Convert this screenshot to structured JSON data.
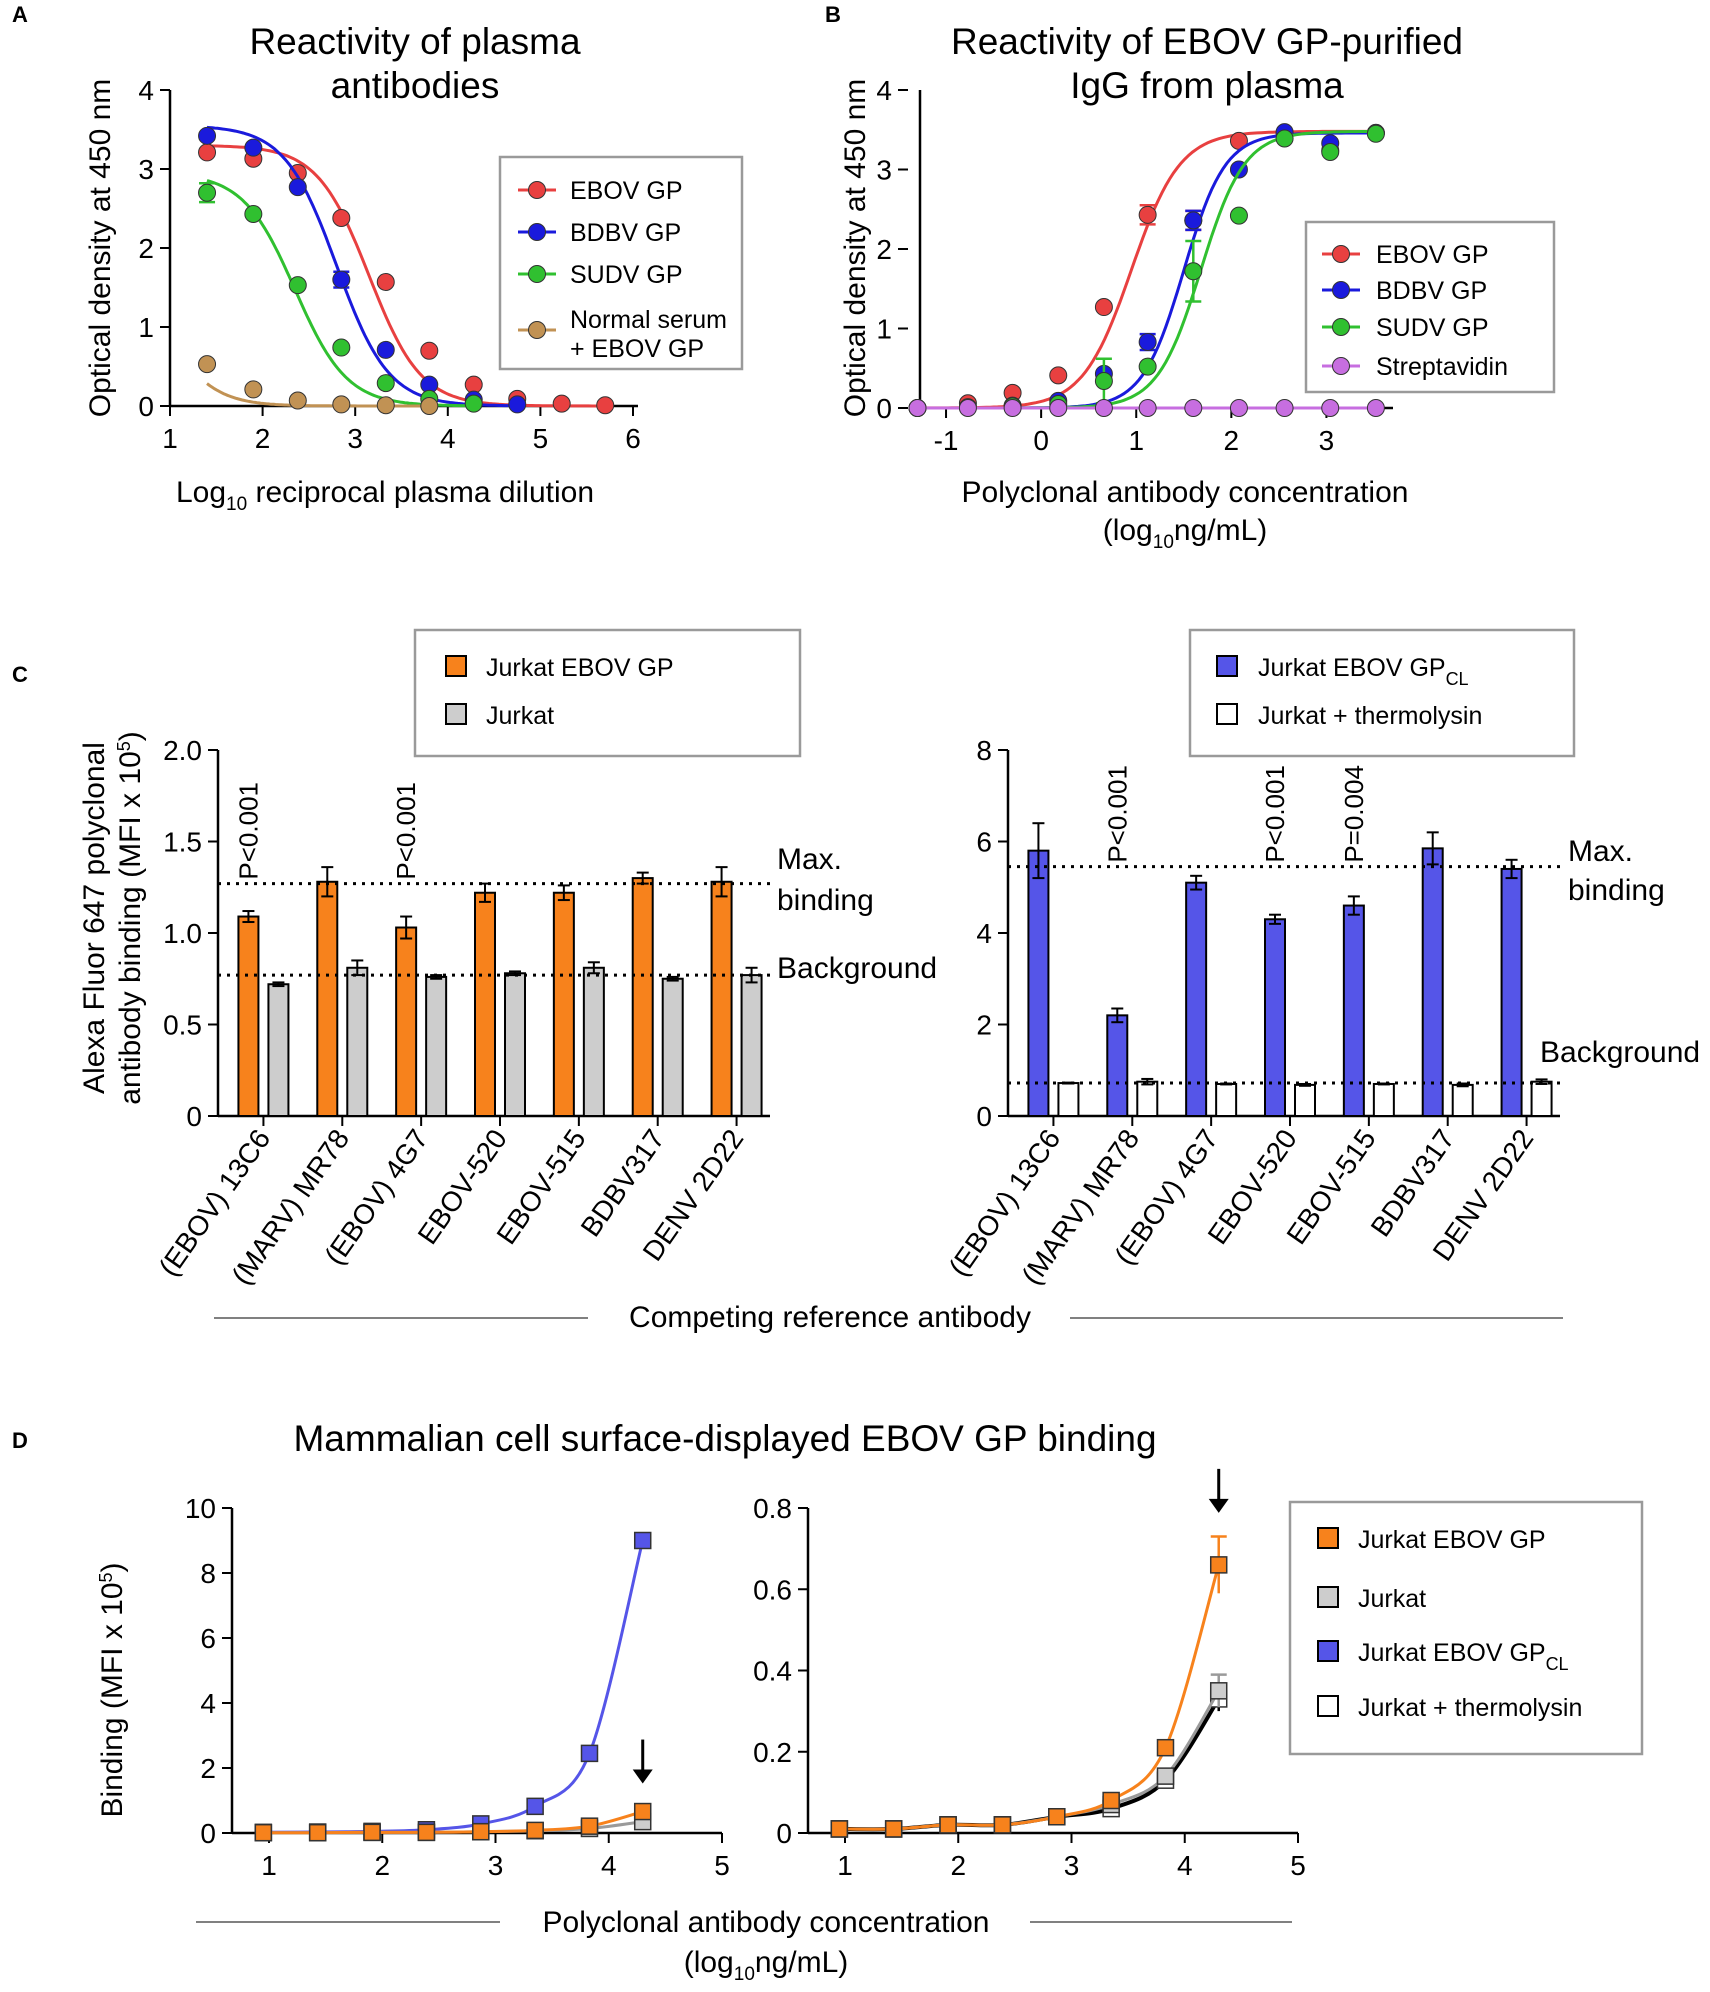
{
  "panel_labels": [
    "A",
    "B",
    "C",
    "D"
  ],
  "section_titles": {
    "competing": "Competing reference antibody",
    "panel_d_title": "Mammalian cell surface-displayed EBOV GP binding",
    "panel_d_xlabel": "Polyclonal antibody concentration",
    "panel_d_xunit": "(log10ng/mL)"
  },
  "colors": {
    "ebov": "#e84040",
    "bdbv": "#1a1adc",
    "sudv": "#30c030",
    "normal": "#c19254",
    "strep": "#c76ee0",
    "orange": "#f7821c",
    "gray": "#cdcdcd",
    "purple": "#5555e8",
    "white": "#ffffff"
  },
  "chart_data": [
    {
      "id": "A",
      "type": "line",
      "title": "Reactivity of plasma antibodies",
      "title_lines": [
        "Reactivity of plasma",
        "antibodies"
      ],
      "xlabel": "Log10 reciprocal plasma dilution",
      "ylabel": "Optical density at 450 nm",
      "xlim": [
        1,
        6
      ],
      "ylim": [
        0,
        4
      ],
      "xticks": [
        1,
        2,
        3,
        4,
        5,
        6
      ],
      "yticks": [
        0,
        1,
        2,
        3,
        4
      ],
      "legend_position": "top-right",
      "series": [
        {
          "name": "EBOV GP",
          "color": "#e84040",
          "x": [
            1.4,
            1.9,
            2.38,
            2.85,
            3.33,
            3.8,
            4.28,
            4.75,
            5.23,
            5.7
          ],
          "y": [
            3.21,
            3.13,
            2.95,
            2.38,
            1.57,
            0.7,
            0.27,
            0.09,
            0.03,
            0.01
          ],
          "err": [
            0,
            0,
            0,
            0,
            0,
            0,
            0,
            0,
            0,
            0
          ],
          "fit": {
            "bottom": 0,
            "top": 3.3,
            "ec50": 3.15,
            "hill": -1.55
          }
        },
        {
          "name": "BDBV GP",
          "color": "#1a1adc",
          "x": [
            1.4,
            1.9,
            2.38,
            2.85,
            3.33,
            3.8,
            4.28,
            4.75
          ],
          "y": [
            3.42,
            3.27,
            2.77,
            1.6,
            0.71,
            0.27,
            0.08,
            0.02
          ],
          "err": [
            0,
            0,
            0,
            0.1,
            0,
            0,
            0,
            0
          ],
          "fit": {
            "bottom": 0,
            "top": 3.55,
            "ec50": 2.8,
            "hill": -1.55
          }
        },
        {
          "name": "SUDV GP",
          "color": "#30c030",
          "x": [
            1.4,
            1.9,
            2.38,
            2.85,
            3.33,
            3.8,
            4.28
          ],
          "y": [
            2.7,
            2.43,
            1.53,
            0.74,
            0.29,
            0.09,
            0.03
          ],
          "err": [
            0.12,
            0,
            0,
            0,
            0,
            0,
            0
          ],
          "fit": {
            "bottom": 0,
            "top": 2.95,
            "ec50": 2.35,
            "hill": -1.55
          }
        },
        {
          "name": "Normal serum + EBOV GP",
          "legend_lines": [
            "Normal serum",
            "+ EBOV GP"
          ],
          "color": "#c19254",
          "x": [
            1.4,
            1.9,
            2.38,
            2.85,
            3.33,
            3.8
          ],
          "y": [
            0.53,
            0.21,
            0.07,
            0.02,
            0.01,
            0.0
          ],
          "err": [
            0,
            0,
            0,
            0,
            0,
            0
          ],
          "fit": {
            "bottom": 0,
            "top": 1.4,
            "ec50": 1.05,
            "hill": -1.7
          }
        }
      ]
    },
    {
      "id": "B",
      "type": "line",
      "title": "Reactivity of EBOV GP-purified IgG from plasma",
      "title_lines": [
        "Reactivity of EBOV GP-purified",
        "IgG from plasma"
      ],
      "xlabel": "Polyclonal antibody concentration",
      "xlabel_unit": "(log10ng/mL)",
      "ylabel": "Optical density at 450 nm",
      "xlim": [
        -1.4,
        3.7
      ],
      "ylim": [
        0,
        4
      ],
      "xticks": [
        -1,
        0,
        1,
        2,
        3
      ],
      "yticks": [
        0,
        1,
        2,
        3,
        4
      ],
      "legend_position": "middle-right",
      "series": [
        {
          "name": "EBOV GP",
          "color": "#e84040",
          "x": [
            -1.3,
            -0.77,
            -0.3,
            0.18,
            0.66,
            1.12,
            1.6,
            2.08,
            2.56,
            3.04,
            3.52
          ],
          "y": [
            0.0,
            0.06,
            0.19,
            0.41,
            1.27,
            2.43,
            2.36,
            3.36,
            3.45,
            3.24,
            3.46
          ],
          "err": [
            0,
            0,
            0,
            0,
            0,
            0.12,
            0.12,
            0,
            0,
            0,
            0
          ],
          "fit": {
            "bottom": 0,
            "top": 3.48,
            "ec50": 0.95,
            "hill": 1.7
          }
        },
        {
          "name": "BDBV GP",
          "color": "#1a1adc",
          "x": [
            -1.3,
            -0.77,
            -0.3,
            0.18,
            0.66,
            1.12,
            1.6,
            2.08,
            2.56,
            3.04,
            3.52
          ],
          "y": [
            0.0,
            0.01,
            0.03,
            0.09,
            0.43,
            0.83,
            2.36,
            3.0,
            3.47,
            3.33,
            3.46
          ],
          "err": [
            0,
            0,
            0,
            0,
            0,
            0.1,
            0.12,
            0,
            0,
            0,
            0
          ],
          "fit": {
            "bottom": 0,
            "top": 3.46,
            "ec50": 1.5,
            "hill": 2.0
          }
        },
        {
          "name": "SUDV GP",
          "color": "#30c030",
          "x": [
            -1.3,
            -0.77,
            -0.3,
            0.18,
            0.66,
            1.12,
            1.6,
            2.08,
            2.56,
            3.04,
            3.52
          ],
          "y": [
            0.0,
            0.01,
            0.02,
            0.05,
            0.34,
            0.52,
            1.72,
            2.42,
            3.39,
            3.22,
            3.45
          ],
          "err": [
            0,
            0,
            0,
            0,
            0.28,
            0,
            0.38,
            0,
            0,
            0,
            0
          ],
          "fit": {
            "bottom": 0,
            "top": 3.48,
            "ec50": 1.68,
            "hill": 1.9
          }
        },
        {
          "name": "Streptavidin",
          "color": "#c76ee0",
          "x": [
            -1.3,
            -0.77,
            -0.3,
            0.18,
            0.66,
            1.12,
            1.6,
            2.08,
            2.56,
            3.04,
            3.52
          ],
          "y": [
            0.0,
            0.0,
            0.0,
            0.0,
            0.0,
            0.0,
            0.0,
            0.0,
            0.0,
            0.0,
            0.0
          ],
          "err": [
            0,
            0,
            0,
            0,
            0,
            0,
            0,
            0,
            0,
            0,
            0
          ],
          "fit": {
            "bottom": 0,
            "top": 0,
            "ec50": 1,
            "hill": 1
          }
        }
      ]
    },
    {
      "id": "C-left",
      "type": "bar",
      "ylabel": "Alexa Fluor 647 polyclonal antibody binding (MFI x 10^5)",
      "ylabel_lines": [
        "Alexa Fluor 647 polyclonal",
        "antibody binding (MFI x 10"
      ],
      "ylabel_sup": "5",
      "ylim": [
        0,
        2.0
      ],
      "yticks": [
        0,
        0.5,
        1.0,
        1.5,
        2.0
      ],
      "ytick_labels": [
        "0",
        "0.5",
        "1.0",
        "1.5",
        "2.0"
      ],
      "categories": [
        "(EBOV) 13C6",
        "(MARV) MR78",
        "(EBOV) 4G7",
        "EBOV-520",
        "EBOV-515",
        "BDBV317",
        "DENV 2D22"
      ],
      "series": [
        {
          "name": "Jurkat EBOV GP",
          "color": "#f7821c",
          "values": [
            1.09,
            1.28,
            1.03,
            1.22,
            1.22,
            1.3,
            1.28
          ],
          "err": [
            0.03,
            0.08,
            0.06,
            0.05,
            0.04,
            0.03,
            0.08
          ]
        },
        {
          "name": "Jurkat",
          "color": "#cdcdcd",
          "values": [
            0.72,
            0.81,
            0.76,
            0.78,
            0.81,
            0.75,
            0.77
          ],
          "err": [
            0.01,
            0.04,
            0.01,
            0.01,
            0.03,
            0.01,
            0.04
          ]
        }
      ],
      "reference_lines": [
        {
          "label": "Max. binding",
          "label_lines": [
            "Max.",
            "binding"
          ],
          "value": 1.27
        },
        {
          "label": "Background",
          "label_lines": [
            "Background"
          ],
          "value": 0.77
        }
      ],
      "annotations": [
        {
          "text": "P<0.001",
          "category": "(EBOV) 13C6"
        },
        {
          "text": "P<0.001",
          "category": "(EBOV) 4G7"
        }
      ],
      "legend_position": "top"
    },
    {
      "id": "C-right",
      "type": "bar",
      "ylim": [
        0,
        8
      ],
      "yticks": [
        0,
        2,
        4,
        6,
        8
      ],
      "ytick_labels": [
        "0",
        "2",
        "4",
        "6",
        "8"
      ],
      "categories": [
        "(EBOV) 13C6",
        "(MARV) MR78",
        "(EBOV) 4G7",
        "EBOV-520",
        "EBOV-515",
        "BDBV317",
        "DENV 2D22"
      ],
      "series": [
        {
          "name": "Jurkat EBOV GP",
          "name_sub": "CL",
          "color": "#5555e8",
          "values": [
            5.8,
            2.2,
            5.1,
            4.3,
            4.6,
            5.85,
            5.4
          ],
          "err": [
            0.6,
            0.15,
            0.15,
            0.1,
            0.2,
            0.35,
            0.2
          ]
        },
        {
          "name": "Jurkat + thermolysin",
          "color": "#ffffff",
          "values": [
            0.72,
            0.75,
            0.7,
            0.68,
            0.7,
            0.68,
            0.75
          ],
          "err": [
            0.01,
            0.06,
            0.01,
            0.02,
            0.01,
            0.03,
            0.05
          ]
        }
      ],
      "reference_lines": [
        {
          "label": "Max. binding",
          "label_lines": [
            "Max.",
            "binding"
          ],
          "value": 5.45
        },
        {
          "label": "Background",
          "label_lines": [
            "Background"
          ],
          "value": 0.72
        }
      ],
      "annotations": [
        {
          "text": "P<0.001",
          "category": "(MARV) MR78"
        },
        {
          "text": "P<0.001",
          "category": "EBOV-520"
        },
        {
          "text": "P=0.004",
          "category": "EBOV-515"
        }
      ],
      "legend_position": "top"
    },
    {
      "id": "D-left",
      "type": "line",
      "ylabel": "Binding (MFI x 10^5)",
      "ylabel_text": "Binding (MFI x 10",
      "ylabel_sup": "5",
      "xlim": [
        0.75,
        5
      ],
      "ylim": [
        0,
        10
      ],
      "xticks": [
        1,
        2,
        3,
        4,
        5
      ],
      "yticks": [
        0,
        2,
        4,
        6,
        8,
        10
      ],
      "arrow_at_x": 4.3,
      "series": [
        {
          "name": "Jurkat EBOV GP CL",
          "color": "#5555e8",
          "x": [
            0.95,
            1.43,
            1.91,
            2.39,
            2.87,
            3.35,
            3.83,
            4.3
          ],
          "y": [
            0.02,
            0.03,
            0.05,
            0.1,
            0.28,
            0.82,
            2.45,
            9.0
          ]
        },
        {
          "name": "Jurkat",
          "color": "#cdcdcd",
          "x": [
            0.95,
            1.43,
            1.91,
            2.39,
            2.87,
            3.35,
            3.83,
            4.3
          ],
          "y": [
            0.01,
            0.01,
            0.02,
            0.02,
            0.04,
            0.07,
            0.14,
            0.35
          ]
        },
        {
          "name": "Jurkat EBOV GP",
          "color": "#f7821c",
          "x": [
            0.95,
            1.43,
            1.91,
            2.39,
            2.87,
            3.35,
            3.83,
            4.3
          ],
          "y": [
            0.01,
            0.01,
            0.02,
            0.02,
            0.04,
            0.08,
            0.21,
            0.66
          ]
        }
      ]
    },
    {
      "id": "D-right",
      "type": "line",
      "xlim": [
        0.75,
        5
      ],
      "ylim": [
        0,
        0.8
      ],
      "xticks": [
        1,
        2,
        3,
        4,
        5
      ],
      "yticks": [
        0,
        0.2,
        0.4,
        0.6,
        0.8
      ],
      "ytick_labels": [
        "0",
        "0.2",
        "0.4",
        "0.6",
        "0.8"
      ],
      "arrow_at_x": 4.3,
      "legend_position": "top-right",
      "series": [
        {
          "name": "Jurkat + thermolysin",
          "color": "#ffffff",
          "x": [
            0.95,
            1.43,
            1.91,
            2.39,
            2.87,
            3.35,
            3.83,
            4.3
          ],
          "y": [
            0.01,
            0.01,
            0.02,
            0.02,
            0.04,
            0.06,
            0.13,
            0.33
          ],
          "err": [
            0,
            0,
            0,
            0,
            0,
            0,
            0,
            0.03
          ]
        },
        {
          "name": "Jurkat",
          "color": "#cdcdcd",
          "x": [
            0.95,
            1.43,
            1.91,
            2.39,
            2.87,
            3.35,
            3.83,
            4.3
          ],
          "y": [
            0.01,
            0.01,
            0.02,
            0.02,
            0.04,
            0.07,
            0.14,
            0.35
          ],
          "err": [
            0,
            0,
            0,
            0,
            0,
            0,
            0,
            0.04
          ]
        },
        {
          "name": "Jurkat EBOV GP",
          "color": "#f7821c",
          "x": [
            0.95,
            1.43,
            1.91,
            2.39,
            2.87,
            3.35,
            3.83,
            4.3
          ],
          "y": [
            0.01,
            0.01,
            0.02,
            0.02,
            0.04,
            0.08,
            0.21,
            0.66
          ],
          "err": [
            0,
            0,
            0,
            0,
            0,
            0,
            0,
            0.07
          ]
        }
      ],
      "legend": [
        {
          "name": "Jurkat EBOV GP",
          "color": "#f7821c"
        },
        {
          "name": "Jurkat",
          "color": "#cdcdcd"
        },
        {
          "name": "Jurkat EBOV GP",
          "name_sub": "CL",
          "color": "#5555e8"
        },
        {
          "name": "Jurkat + thermolysin",
          "color": "#ffffff"
        }
      ]
    }
  ]
}
